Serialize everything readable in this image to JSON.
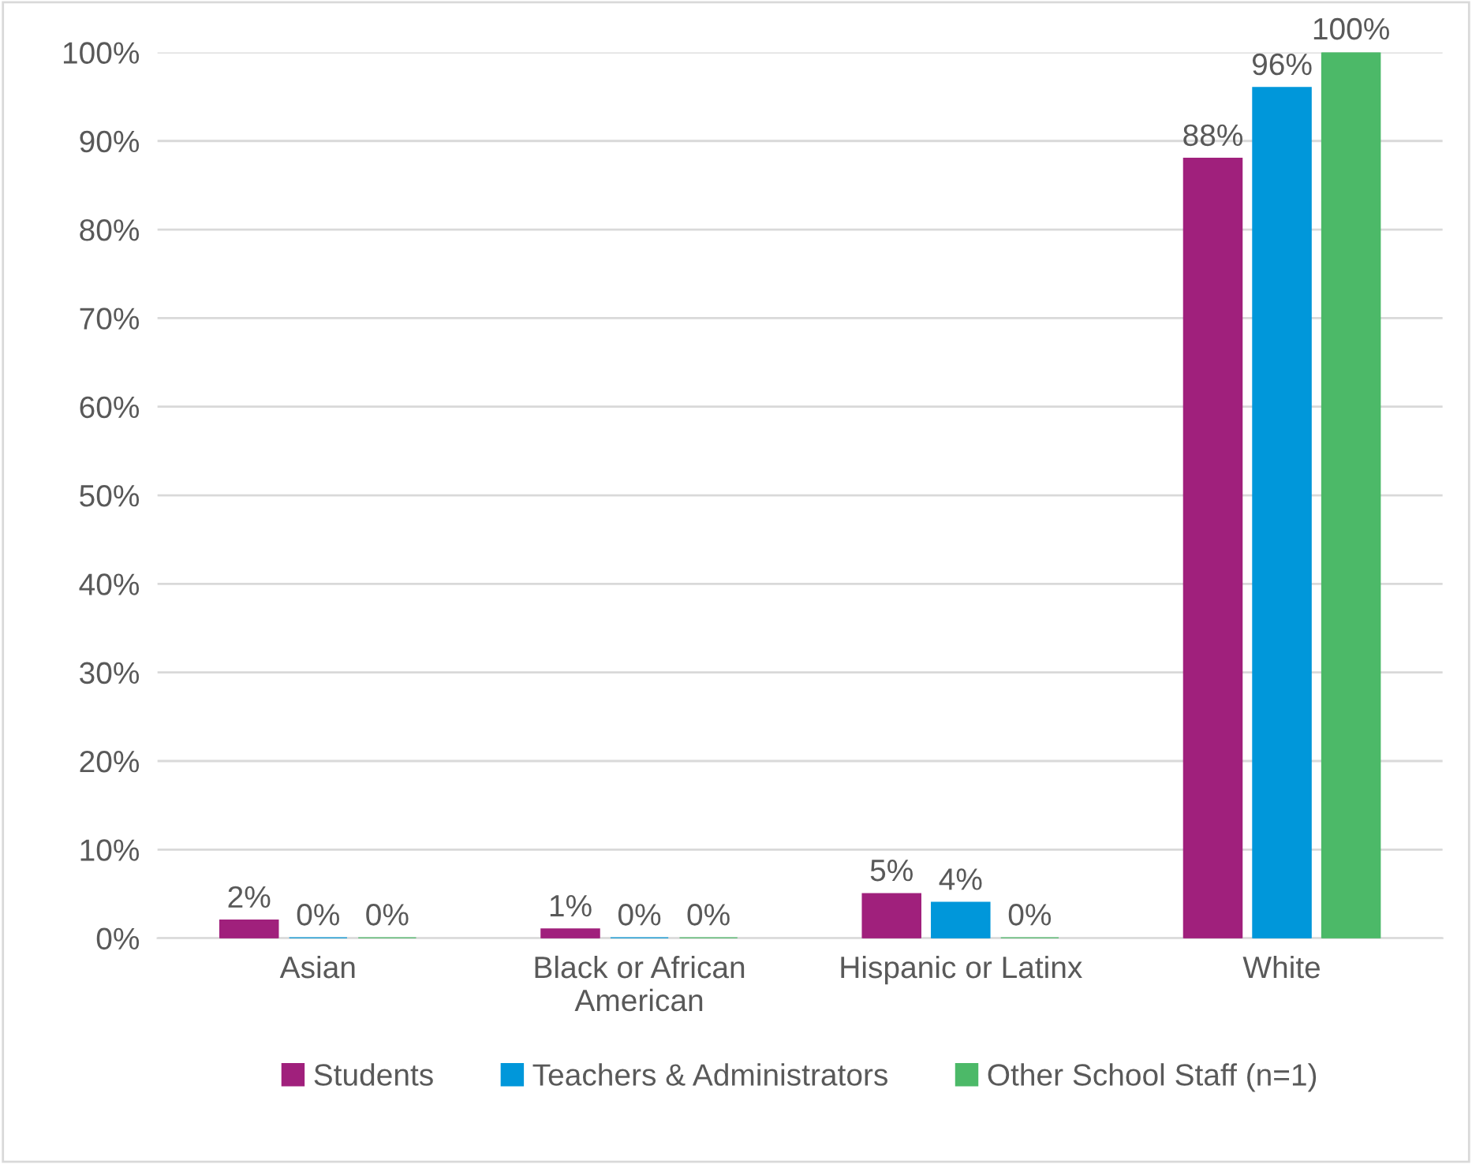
{
  "chart_data": {
    "type": "bar",
    "categories": [
      "Asian",
      "Black or African\nAmerican",
      "Hispanic or Latinx",
      "White"
    ],
    "series": [
      {
        "name": "Students",
        "color": "#a0207c",
        "values": [
          2,
          1,
          5,
          88
        ],
        "value_labels": [
          "2%",
          "1%",
          "5%",
          "88%"
        ]
      },
      {
        "name": "Teachers & Administrators",
        "color": "#0097da",
        "values": [
          0,
          0,
          4,
          96
        ],
        "value_labels": [
          "0%",
          "0%",
          "4%",
          "96%"
        ]
      },
      {
        "name": "Other School Staff (n=1)",
        "color": "#4cb968",
        "values": [
          0,
          0,
          0,
          100
        ],
        "value_labels": [
          "0%",
          "0%",
          "0%",
          "100%"
        ]
      }
    ],
    "ylim": [
      0,
      100
    ],
    "yticks": [
      {
        "value": 0,
        "label": "0%"
      },
      {
        "value": 10,
        "label": "10%"
      },
      {
        "value": 20,
        "label": "20%"
      },
      {
        "value": 30,
        "label": "30%"
      },
      {
        "value": 40,
        "label": "40%"
      },
      {
        "value": 50,
        "label": "50%"
      },
      {
        "value": 60,
        "label": "60%"
      },
      {
        "value": 70,
        "label": "70%"
      },
      {
        "value": 80,
        "label": "80%"
      },
      {
        "value": 90,
        "label": "90%"
      },
      {
        "value": 100,
        "label": "100%"
      }
    ],
    "grid": "y",
    "legend": "bottom"
  }
}
